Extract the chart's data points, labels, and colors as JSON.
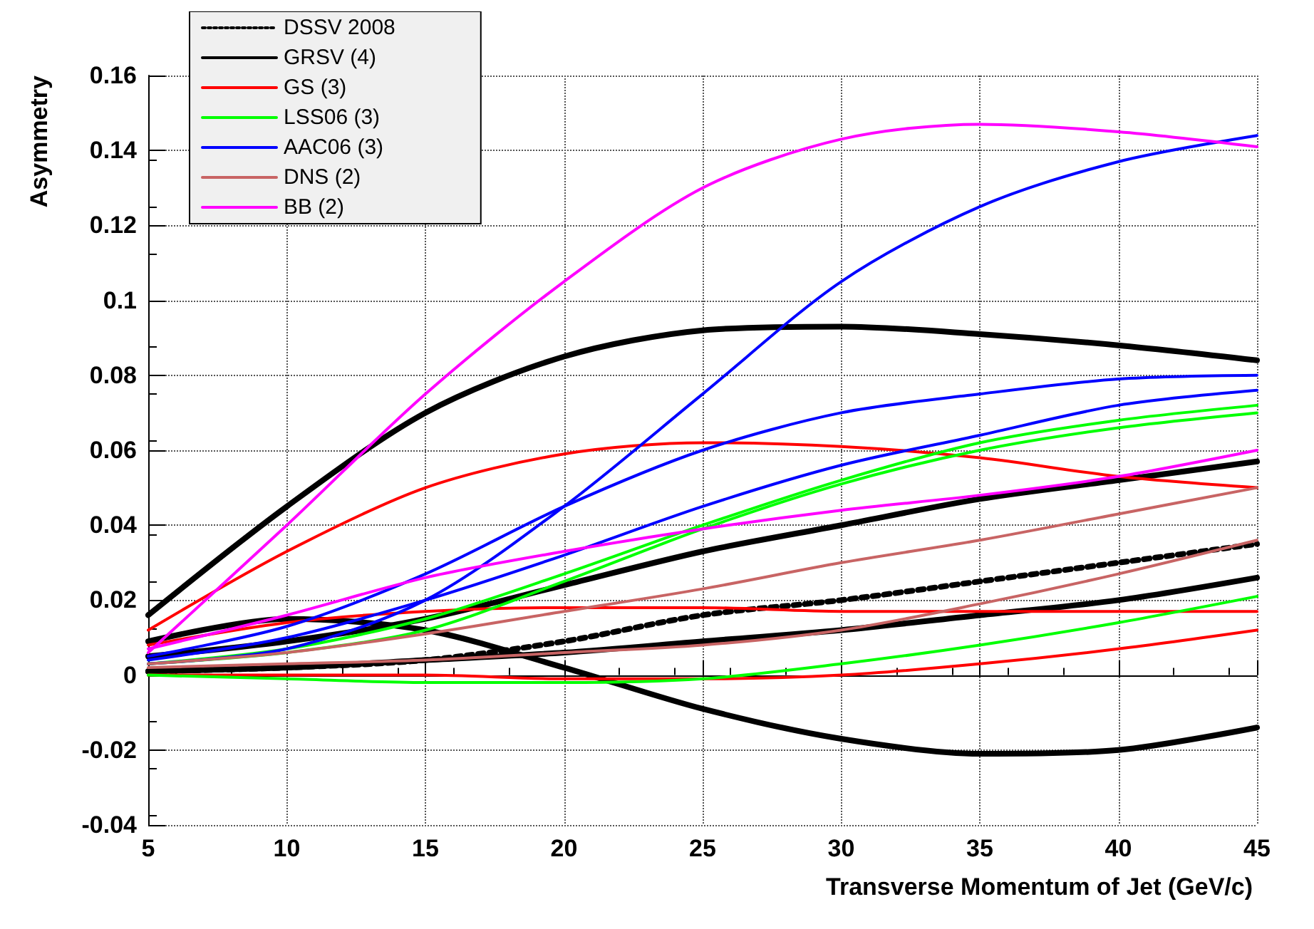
{
  "chart_data": {
    "type": "line",
    "xlabel": "Transverse Momentum of Jet (GeV/c)",
    "ylabel": "Asymmetry",
    "x": [
      5,
      10,
      15,
      20,
      25,
      30,
      35,
      40,
      45
    ],
    "xlim": [
      5,
      45
    ],
    "xticks": [
      5,
      10,
      15,
      20,
      25,
      30,
      35,
      40,
      45
    ],
    "ylim": [
      -0.04,
      0.16
    ],
    "yticks": [
      -0.04,
      -0.02,
      0,
      0.02,
      0.04,
      0.06,
      0.08,
      0.1,
      0.12,
      0.14,
      0.16
    ],
    "grid": true,
    "legend": "top left",
    "marker": "none",
    "series": [
      {
        "name": "DSSV 2008",
        "color": "#000000",
        "line_style": "dotted",
        "values": [
          0.001,
          0.002,
          0.004,
          0.009,
          0.016,
          0.02,
          0.025,
          0.03,
          0.035
        ]
      },
      {
        "name": "GRSV (4)",
        "color": "#000000",
        "values": [
          0.016,
          0.045,
          0.07,
          0.085,
          0.092,
          0.093,
          0.091,
          0.088,
          0.084
        ]
      },
      {
        "color": "#000000",
        "values": [
          0.005,
          0.009,
          0.015,
          0.024,
          0.033,
          0.04,
          0.047,
          0.052,
          0.057
        ]
      },
      {
        "color": "#000000",
        "values": [
          0.009,
          0.015,
          0.012,
          0.002,
          -0.009,
          -0.017,
          -0.021,
          -0.02,
          -0.014
        ]
      },
      {
        "color": "#000000",
        "values": [
          0.001,
          0.002,
          0.004,
          0.006,
          0.009,
          0.012,
          0.016,
          0.02,
          0.026
        ]
      },
      {
        "name": "GS (3)",
        "color": "#ff0000",
        "values": [
          0.012,
          0.033,
          0.05,
          0.059,
          0.062,
          0.061,
          0.058,
          0.053,
          0.05
        ]
      },
      {
        "color": "#ff0000",
        "values": [
          0.008,
          0.014,
          0.017,
          0.018,
          0.018,
          0.017,
          0.017,
          0.017,
          0.017
        ]
      },
      {
        "color": "#ff0000",
        "values": [
          0,
          0,
          0,
          -0.001,
          -0.001,
          0,
          0.003,
          0.007,
          0.012
        ]
      },
      {
        "name": "LSS06 (3)",
        "color": "#00ff00",
        "values": [
          0.003,
          0.007,
          0.015,
          0.027,
          0.04,
          0.052,
          0.062,
          0.068,
          0.072
        ]
      },
      {
        "color": "#00ff00",
        "values": [
          0.003,
          0.006,
          0.012,
          0.025,
          0.039,
          0.051,
          0.06,
          0.066,
          0.07
        ]
      },
      {
        "color": "#00ff00",
        "values": [
          0,
          -0.001,
          -0.002,
          -0.002,
          -0.001,
          0.003,
          0.008,
          0.014,
          0.021
        ]
      },
      {
        "name": "AAC06 (3)",
        "color": "#0000ff",
        "values": [
          0.003,
          0.007,
          0.02,
          0.045,
          0.075,
          0.105,
          0.125,
          0.137,
          0.144
        ]
      },
      {
        "color": "#0000ff",
        "values": [
          0.005,
          0.013,
          0.027,
          0.045,
          0.06,
          0.07,
          0.075,
          0.079,
          0.08
        ]
      },
      {
        "color": "#0000ff",
        "values": [
          0.004,
          0.01,
          0.02,
          0.032,
          0.045,
          0.056,
          0.064,
          0.072,
          0.076
        ]
      },
      {
        "name": "DNS (2)",
        "color": "#c86464",
        "values": [
          0.003,
          0.006,
          0.011,
          0.017,
          0.023,
          0.03,
          0.036,
          0.043,
          0.05
        ]
      },
      {
        "color": "#c86464",
        "values": [
          0.002,
          0.003,
          0.004,
          0.006,
          0.008,
          0.012,
          0.019,
          0.027,
          0.036
        ]
      },
      {
        "name": "BB (2)",
        "color": "#ff00ff",
        "values": [
          0.006,
          0.04,
          0.075,
          0.105,
          0.13,
          0.143,
          0.147,
          0.145,
          0.141
        ]
      },
      {
        "color": "#ff00ff",
        "values": [
          0.007,
          0.016,
          0.026,
          0.033,
          0.039,
          0.044,
          0.048,
          0.053,
          0.06
        ]
      }
    ]
  }
}
